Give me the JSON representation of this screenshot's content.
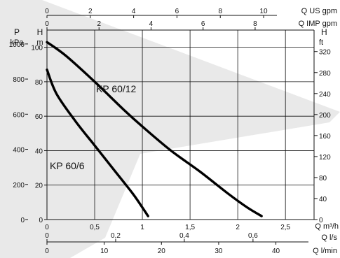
{
  "chart_data": {
    "type": "line",
    "title": "",
    "primary_axis": {
      "unit": "Q m³/h",
      "ticks": [
        "0",
        "0,5",
        "1",
        "1,5",
        "2",
        "2,5"
      ],
      "xlim": [
        0,
        2.8
      ]
    },
    "left_axes": [
      {
        "label_top": "H",
        "label_unit": "m",
        "ticks": [
          0,
          20,
          40,
          60,
          80,
          100
        ],
        "ylim": [
          0,
          110
        ]
      },
      {
        "label_top": "P",
        "label_unit": "kPa",
        "ticks": [
          0,
          200,
          400,
          600,
          800,
          1000
        ]
      }
    ],
    "right_axis": {
      "label_top": "H",
      "label_unit": "ft",
      "ticks": [
        0,
        40,
        80,
        120,
        160,
        200,
        240,
        280,
        320
      ]
    },
    "top_axes": [
      {
        "unit": "Q US gpm",
        "ticks": [
          0,
          2,
          4,
          6,
          8,
          10
        ]
      },
      {
        "unit": "Q IMP gpm",
        "ticks": [
          0,
          2,
          4,
          6,
          8
        ]
      }
    ],
    "bottom_axes": [
      {
        "unit": "Q l/s",
        "ticks": [
          "0",
          "0,2",
          "0,4",
          "0,6"
        ]
      },
      {
        "unit": "Q l/min",
        "ticks": [
          0,
          10,
          20,
          30,
          40
        ]
      }
    ],
    "series": [
      {
        "name": "KP 60/12",
        "x": [
          0,
          0.2,
          0.5,
          0.8,
          1.0,
          1.3,
          1.6,
          1.9,
          2.1,
          2.25
        ],
        "y": [
          103,
          95,
          80,
          64,
          54,
          40,
          28,
          15,
          7,
          2
        ]
      },
      {
        "name": "KP 60/6",
        "x": [
          0,
          0.1,
          0.3,
          0.5,
          0.7,
          0.9,
          1.0,
          1.06
        ],
        "y": [
          87,
          73,
          57,
          43,
          29,
          15,
          7,
          2
        ]
      }
    ],
    "grid": true
  }
}
